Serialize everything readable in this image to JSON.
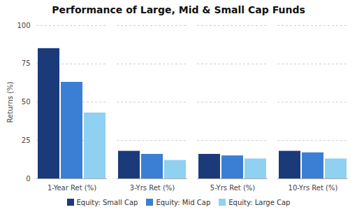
{
  "chart_data": {
    "type": "bar",
    "title": "Performance of Large, Mid & Small Cap Funds",
    "ylabel": "Returns (%)",
    "categories": [
      "1-Year Ret (%)",
      "3-Yrs Ret (%)",
      "5-Yrs Ret (%)",
      "10-Yrs Ret (%)"
    ],
    "series": [
      {
        "name": "Equity: Small Cap",
        "color": "#1a3a7a",
        "values": [
          85,
          18,
          16,
          18
        ]
      },
      {
        "name": "Equity: Mid Cap",
        "color": "#3a7fd4",
        "values": [
          63,
          16,
          15,
          17
        ]
      },
      {
        "name": "Equity: Large Cap",
        "color": "#90d0f0",
        "values": [
          43,
          12,
          13,
          13
        ]
      }
    ],
    "ylim": [
      0,
      100
    ],
    "yticks": [
      0,
      25,
      50,
      75,
      100
    ],
    "grid": true,
    "legend": "bottom"
  }
}
